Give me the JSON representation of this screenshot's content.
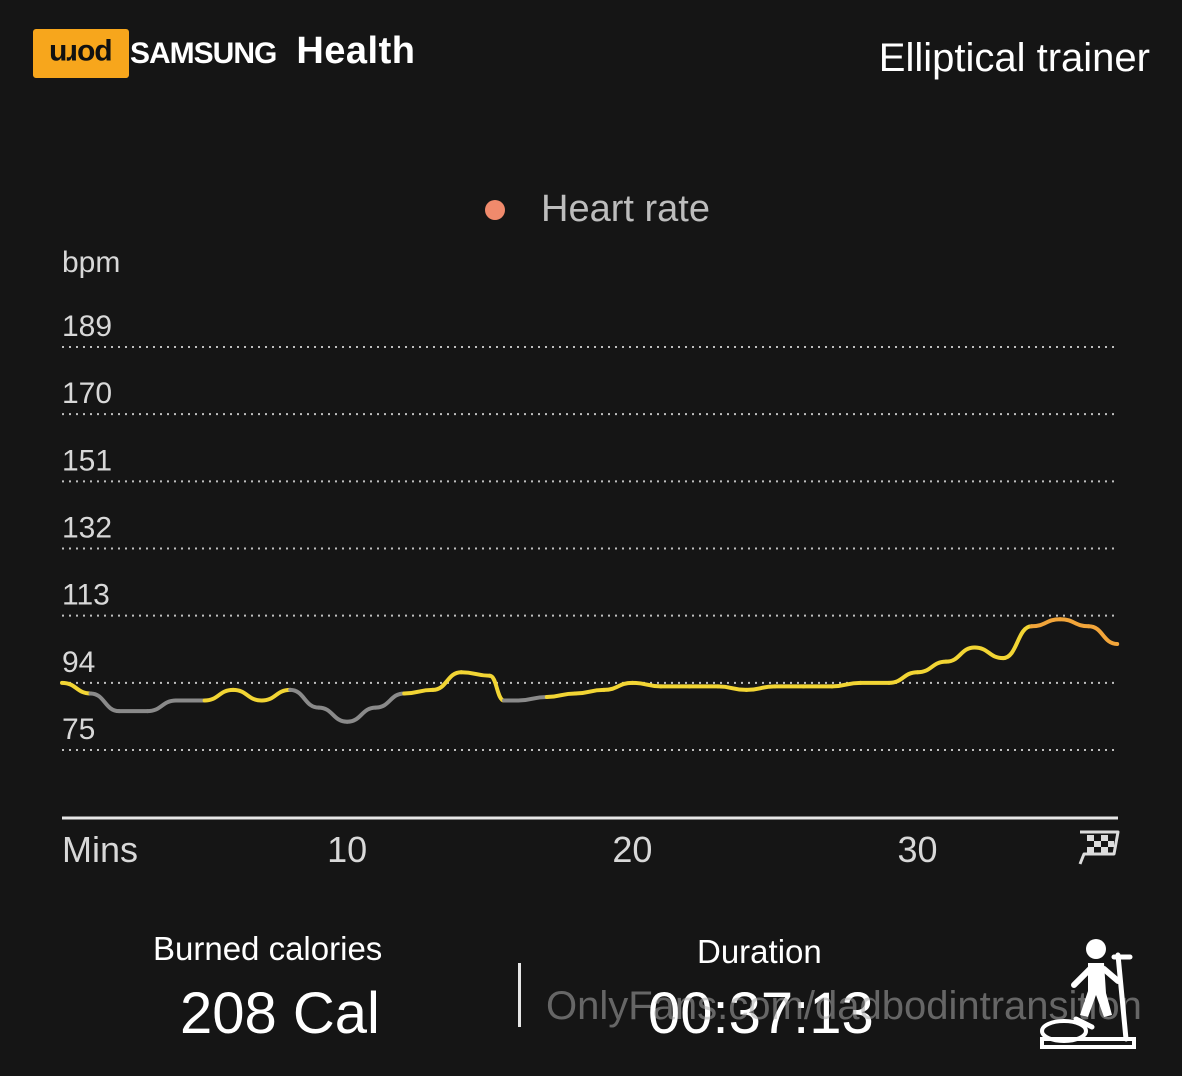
{
  "watermark_badge": "porn",
  "app": {
    "brand": "SAMSUNG",
    "name": "Health"
  },
  "workout_title": "Elliptical trainer",
  "legend": {
    "label": "Heart rate",
    "color": "#f08a6c"
  },
  "colors": {
    "low": "#8a8a8a",
    "moderate": "#f2d534",
    "high": "#f2a53a",
    "background": "#151515"
  },
  "chart_data": {
    "type": "line",
    "title": "",
    "ylabel": "bpm",
    "xlabel": "Mins",
    "ylim": [
      75,
      189
    ],
    "xlim": [
      0,
      37.2
    ],
    "yticks": [
      189,
      170,
      151,
      132,
      113,
      94,
      75
    ],
    "xticks": [
      10,
      20,
      30
    ],
    "grid": true,
    "finish_icon": "checkered-flag-icon",
    "series": [
      {
        "x": [
          0,
          1,
          2,
          3,
          4,
          5,
          6,
          7,
          8,
          9,
          10,
          11,
          12,
          13,
          14,
          15,
          15.5,
          16,
          17,
          18,
          19,
          20,
          21,
          22,
          23,
          24,
          25,
          26,
          27,
          28,
          29,
          30,
          31,
          32,
          33,
          34,
          35,
          36,
          37
        ],
        "y": [
          94,
          91,
          86,
          86,
          89,
          89,
          92,
          89,
          92,
          87,
          83,
          87,
          91,
          92,
          97,
          96,
          89,
          89,
          90,
          91,
          92,
          94,
          93,
          93,
          93,
          92,
          93,
          93,
          93,
          94,
          94,
          97,
          100,
          104,
          101,
          110,
          112,
          110,
          105
        ]
      }
    ]
  },
  "stats": {
    "calories": {
      "label": "Burned calories",
      "value": "208 Cal"
    },
    "duration": {
      "label": "Duration",
      "value": "00:37:13"
    }
  },
  "watermark": "OnlyFans.com/dadbodintransition",
  "exercise_icon": "elliptical-trainer-icon"
}
